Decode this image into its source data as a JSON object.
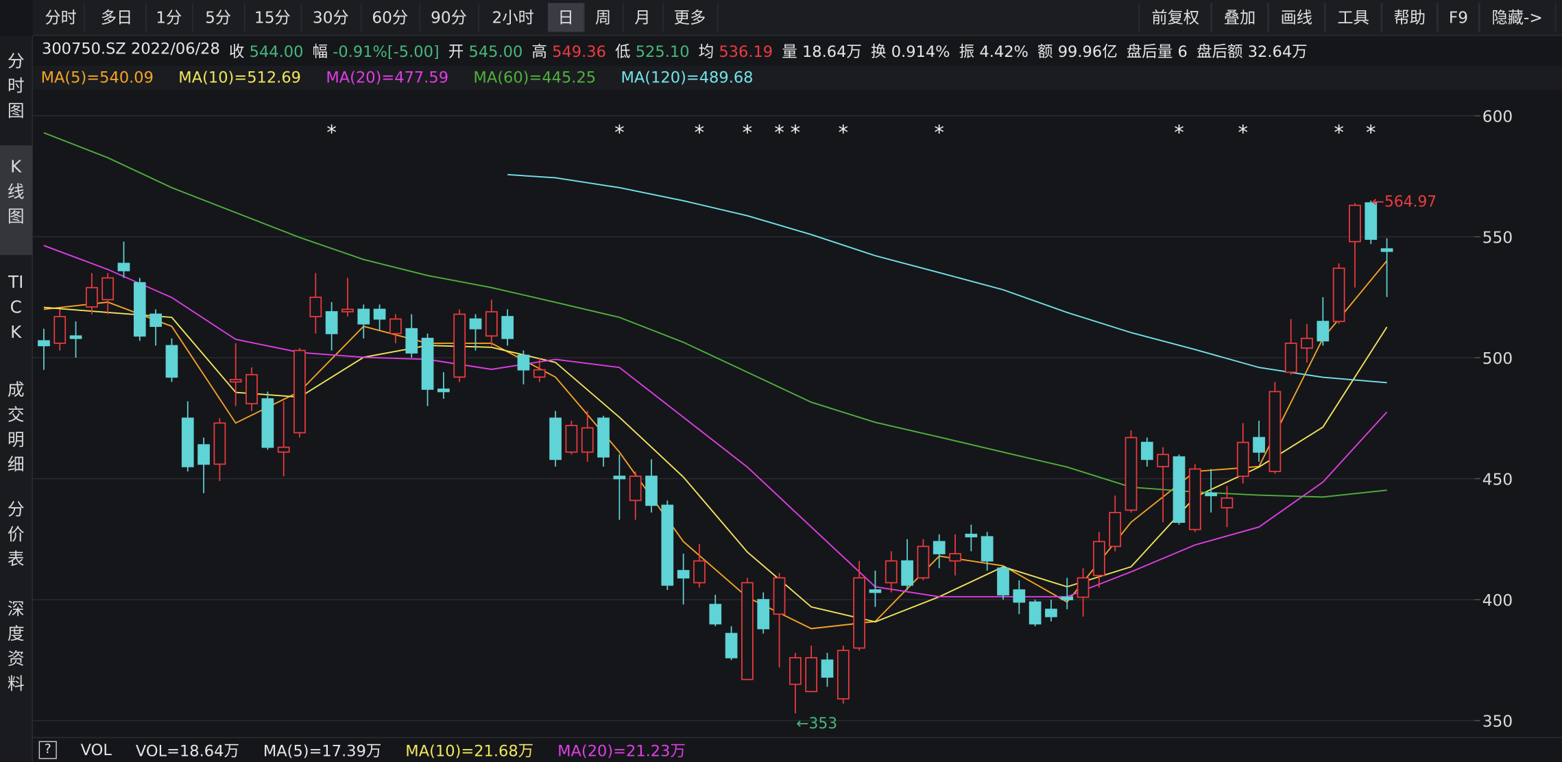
{
  "toolbar": {
    "left": [
      "分时",
      "多日",
      "1分",
      "5分",
      "15分",
      "30分",
      "60分",
      "90分",
      "2小时",
      "日",
      "周",
      "月",
      "更多"
    ],
    "right": [
      "前复权",
      "叠加",
      "画线",
      "工具",
      "帮助",
      "F9",
      "隐藏->"
    ],
    "selected_index": 9
  },
  "sidebar": {
    "tabs": [
      "分时图",
      "K线图",
      "TICK",
      "成交明细",
      "分价表",
      "深度资料"
    ],
    "selected_index": 1
  },
  "quote": {
    "symbol": "300750.SZ 2022/06/28",
    "fields": [
      {
        "label": "收",
        "value": "544.00",
        "color": "#46b87a"
      },
      {
        "label": "幅",
        "value": "-0.91%[-5.00]",
        "color": "#46b87a"
      },
      {
        "label": "开",
        "value": "545.00",
        "color": "#46b87a"
      },
      {
        "label": "高",
        "value": "549.36",
        "color": "#ec3b3f"
      },
      {
        "label": "低",
        "value": "525.10",
        "color": "#46b87a"
      },
      {
        "label": "均",
        "value": "536.19",
        "color": "#ec3b3f"
      },
      {
        "label": "量",
        "value": "18.64万",
        "color": "#e6e6e6"
      },
      {
        "label": "换",
        "value": "0.914%",
        "color": "#e6e6e6"
      },
      {
        "label": "振",
        "value": "4.42%",
        "color": "#e6e6e6"
      },
      {
        "label": "额",
        "value": "99.96亿",
        "color": "#e6e6e6"
      },
      {
        "label": "盘后量",
        "value": "6",
        "color": "#e6e6e6"
      },
      {
        "label": "盘后额",
        "value": "32.64万",
        "color": "#e6e6e6"
      }
    ]
  },
  "chart_data": {
    "type": "candlestick",
    "open": [
      507,
      506,
      509,
      521,
      524,
      539,
      531,
      518,
      505,
      475,
      464,
      456,
      490,
      481,
      483,
      461,
      469,
      517,
      519,
      519,
      520,
      520,
      510,
      512,
      508,
      487,
      492,
      516,
      509,
      517,
      501,
      492,
      475,
      461,
      461,
      475,
      451,
      441,
      451,
      439,
      412,
      407,
      398,
      386,
      367,
      400,
      394,
      365,
      362,
      375,
      359,
      380,
      404,
      407,
      416,
      409,
      424,
      416,
      427,
      426,
      413,
      404,
      399,
      396,
      401,
      401,
      410,
      422,
      437,
      465,
      455,
      459,
      429,
      444,
      438,
      451,
      467,
      453,
      494,
      504,
      515,
      515,
      548,
      564,
      545
    ],
    "high": [
      512,
      520,
      515,
      535,
      535,
      548,
      533,
      520,
      508,
      482,
      467,
      475,
      506,
      496,
      486,
      482,
      504,
      535,
      523,
      533,
      522,
      522,
      518,
      518,
      510,
      494,
      520,
      518,
      524,
      520,
      503,
      500,
      478,
      474,
      478,
      476,
      460,
      453,
      458,
      441,
      419,
      423,
      402,
      389,
      409,
      403,
      411,
      378,
      381,
      378,
      381,
      416,
      412,
      420,
      425,
      425,
      427,
      427,
      431,
      428,
      414,
      408,
      400,
      400,
      409,
      413,
      428,
      443,
      470,
      467,
      463,
      460,
      456,
      454,
      447,
      473,
      474,
      490,
      516,
      514,
      525,
      539,
      564,
      564.97,
      549.36
    ],
    "low": [
      495,
      503,
      500,
      518,
      518,
      533,
      507,
      505,
      490,
      453,
      444,
      449,
      480,
      478,
      462,
      451,
      467,
      510,
      503,
      517,
      508,
      511,
      506,
      500,
      480,
      483,
      490,
      503,
      505,
      505,
      489,
      490,
      455,
      460,
      457,
      455,
      433,
      433,
      436,
      404,
      398,
      405,
      389,
      375,
      367,
      386,
      372,
      353,
      362,
      364,
      357,
      379,
      397,
      403,
      404,
      408,
      413,
      410,
      420,
      412,
      400,
      394,
      389,
      391,
      396,
      393,
      405,
      420,
      436,
      455,
      432,
      431,
      428,
      436,
      430,
      448,
      457,
      452,
      493,
      498,
      505,
      514,
      529,
      547,
      525.1
    ],
    "close": [
      505,
      517,
      508,
      529,
      533,
      536,
      509,
      513,
      492,
      455,
      456,
      473,
      491,
      493,
      463,
      463,
      503,
      525,
      510,
      520,
      514,
      516,
      516,
      502,
      487,
      486,
      518,
      512,
      519,
      508,
      495,
      495,
      458,
      472,
      471,
      459,
      450,
      451,
      439,
      406,
      409,
      416,
      390,
      376,
      407,
      388,
      409,
      376,
      376,
      368,
      379,
      409,
      403,
      416,
      406,
      422,
      419,
      419,
      426,
      416,
      402,
      399,
      390,
      393,
      400,
      409,
      424,
      436,
      467,
      458,
      460,
      432,
      454,
      443,
      442,
      465,
      461,
      486,
      506,
      508,
      507,
      537,
      563,
      549,
      544
    ],
    "up_color": "#ec3b3f",
    "down_color": "#5fd3d5",
    "ylim": [
      344,
      610
    ],
    "yticks": [
      350,
      400,
      450,
      500,
      550,
      600
    ],
    "grid": true,
    "series": [
      {
        "name": "MA(5)=540.09",
        "color": "#f5a524",
        "x": [
          0,
          4,
          8,
          12,
          16,
          20,
          24,
          28,
          32,
          36,
          40,
          44,
          48,
          52,
          56,
          60,
          64,
          68,
          72,
          76,
          80,
          84
        ],
        "values": [
          520,
          523,
          513,
          473,
          486,
          513,
          506,
          506,
          492,
          461,
          424,
          401,
          388,
          391,
          418,
          414,
          399,
          432,
          453,
          455,
          508,
          540.09
        ]
      },
      {
        "name": "MA(10)=512.69",
        "color": "#f2e65c",
        "x": [
          0,
          4,
          8,
          12,
          16,
          20,
          24,
          28,
          32,
          36,
          40,
          44,
          48,
          52,
          56,
          60,
          64,
          68,
          72,
          76,
          80,
          84
        ],
        "values": [
          520.8,
          518.7,
          516.7,
          485.7,
          483.7,
          500.2,
          505.1,
          504.3,
          498.1,
          475.4,
          450.7,
          419.7,
          397,
          390.8,
          401.2,
          413.6,
          405.3,
          413.6,
          442.4,
          454.8,
          471.3,
          512.69
        ]
      },
      {
        "name": "MA(20)=477.59",
        "color": "#e03ee6",
        "x": [
          0,
          4,
          8,
          12,
          16,
          20,
          24,
          28,
          32,
          36,
          40,
          44,
          48,
          52,
          56,
          60,
          64,
          68,
          72,
          76,
          80,
          84
        ],
        "values": [
          546.4,
          536.5,
          524.9,
          507.6,
          502.2,
          500.2,
          499.3,
          495.2,
          499.3,
          496,
          475.4,
          454.8,
          430,
          405.3,
          401.2,
          401.2,
          401.2,
          411.5,
          422.6,
          430,
          448.6,
          477.59
        ]
      },
      {
        "name": "MA(60)=445.25",
        "color": "#4fb23c",
        "x": [
          0,
          4,
          8,
          12,
          16,
          20,
          24,
          28,
          32,
          36,
          40,
          44,
          48,
          52,
          56,
          60,
          64,
          68,
          72,
          76,
          80,
          84
        ],
        "values": [
          593,
          582.7,
          570.3,
          560,
          549.7,
          540.6,
          534,
          529,
          522.9,
          516.7,
          506.4,
          494,
          481.6,
          473.3,
          467.2,
          461,
          454.8,
          446.5,
          444.5,
          443.2,
          442.4,
          445.25
        ]
      },
      {
        "name": "MA(120)=489.68",
        "color": "#72e4ea",
        "x": [
          29,
          32,
          36,
          40,
          44,
          48,
          52,
          56,
          60,
          64,
          68,
          72,
          76,
          80,
          84
        ],
        "values": [
          575.7,
          574.4,
          570.3,
          564.9,
          558.7,
          550.9,
          542.2,
          535.2,
          528.1,
          518.7,
          510.4,
          503.4,
          496,
          491.9,
          489.68
        ]
      }
    ],
    "markers": [
      {
        "index": 18,
        "label": "*"
      },
      {
        "index": 36,
        "label": "*"
      },
      {
        "index": 41,
        "label": "*"
      },
      {
        "index": 44,
        "label": "*"
      },
      {
        "index": 46,
        "label": "*"
      },
      {
        "index": 47,
        "label": "*"
      },
      {
        "index": 50,
        "label": "*"
      },
      {
        "index": 56,
        "label": "*"
      },
      {
        "index": 71,
        "label": "*"
      },
      {
        "index": 75,
        "label": "*"
      },
      {
        "index": 81,
        "label": "*"
      },
      {
        "index": 83,
        "label": "*"
      }
    ],
    "annotations": [
      {
        "label": "←564.97",
        "index": 83,
        "color": "#ec3b3f"
      },
      {
        "label": "←353",
        "index": 47,
        "color": "#46b87a"
      }
    ]
  },
  "volume": {
    "help": "?",
    "label": "VOL",
    "fields": [
      {
        "text": "VOL=18.64万",
        "color": "#e6e6e6"
      },
      {
        "text": "MA(5)=17.39万",
        "color": "#e6e6e6"
      },
      {
        "text": "MA(10)=21.68万",
        "color": "#f2e65c"
      },
      {
        "text": "MA(20)=21.23万",
        "color": "#e03ee6"
      }
    ]
  }
}
